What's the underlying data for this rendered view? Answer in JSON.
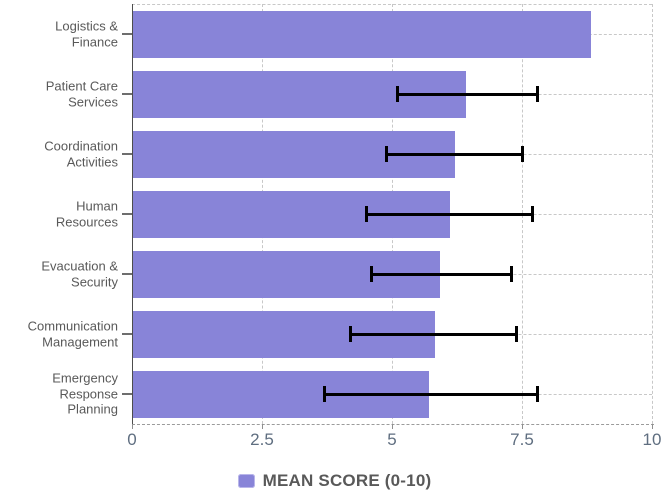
{
  "chart_data": {
    "type": "bar",
    "orientation": "horizontal",
    "title": "",
    "xlabel": "",
    "ylabel": "",
    "categories": [
      "Logistics & Finance",
      "Patient Care Services",
      "Coordination Activities",
      "Human Resources",
      "Evacuation & Security",
      "Communication Management",
      "Emergency Response Planning"
    ],
    "category_display": [
      "Logistics &\nFinance",
      "Patient Care\nServices",
      "Coordination\nActivities",
      "Human\nResources",
      "Evacuation &\nSecurity",
      "Communication\nManagement",
      "Emergency\nResponse\nPlanning"
    ],
    "series": [
      {
        "name": "MEAN SCORE (0-10)",
        "color": "#8884d8",
        "values": [
          8.8,
          6.4,
          6.2,
          6.1,
          5.9,
          5.8,
          5.7
        ]
      }
    ],
    "error_bars": {
      "color": "#000000",
      "low": [
        null,
        5.1,
        4.9,
        4.5,
        4.6,
        4.2,
        3.7
      ],
      "high": [
        null,
        7.8,
        7.5,
        7.7,
        7.3,
        7.4,
        7.8
      ]
    },
    "xlim": [
      0,
      10
    ],
    "xticks": [
      0,
      2.5,
      5,
      7.5,
      10
    ],
    "xtick_labels": [
      "0",
      "2.5",
      "5",
      "7.5",
      "10"
    ],
    "grid": true,
    "legend": {
      "position": "bottom",
      "items": [
        {
          "label": "MEAN SCORE (0-10)",
          "color": "#8884d8"
        }
      ]
    }
  },
  "colors": {
    "bar": "#8884d8",
    "grid": "#c8c8c8",
    "axis": "#4d4d4d",
    "x_axis": "#9b9b9b",
    "tick_text": "#5f6e80",
    "category_text": "#595959",
    "legend_text": "#595959",
    "error": "#000000",
    "background": "#ffffff"
  }
}
